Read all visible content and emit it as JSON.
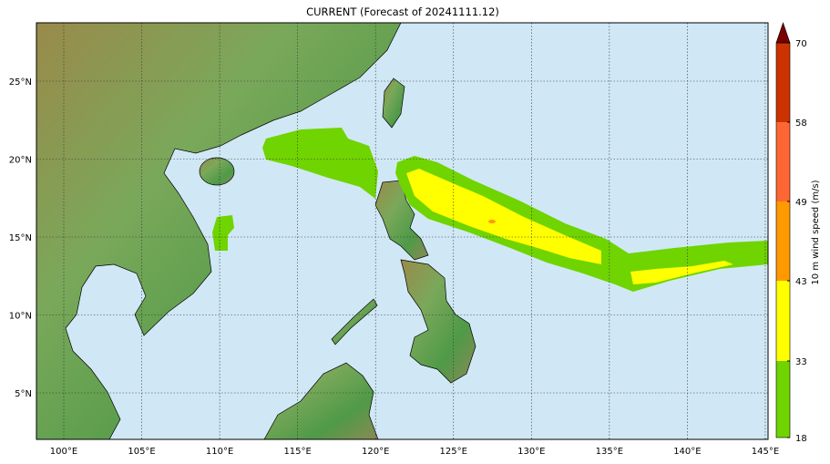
{
  "title": "CURRENT (Forecast of 20241111.12)",
  "map": {
    "lon_range": [
      98.25,
      145.2
    ],
    "lat_range": [
      2.0,
      28.7
    ],
    "ocean_color": "#d0e8f5",
    "lon_ticks": [
      "100°E",
      "105°E",
      "110°E",
      "115°E",
      "120°E",
      "125°E",
      "130°E",
      "135°E",
      "140°E",
      "145°E"
    ],
    "lat_ticks": [
      "25°N",
      "20°N",
      "15°N",
      "10°N",
      "5°N"
    ],
    "gridlines": true
  },
  "colorbar": {
    "label": "10 m wind speed (m/s)",
    "levels": [
      "18",
      "33",
      "43",
      "49",
      "58",
      "70"
    ],
    "colors": [
      "#6fd400",
      "#ffff00",
      "#ff9900",
      "#ff6633",
      "#cc3300"
    ],
    "extend_color": "#7a0000"
  }
}
